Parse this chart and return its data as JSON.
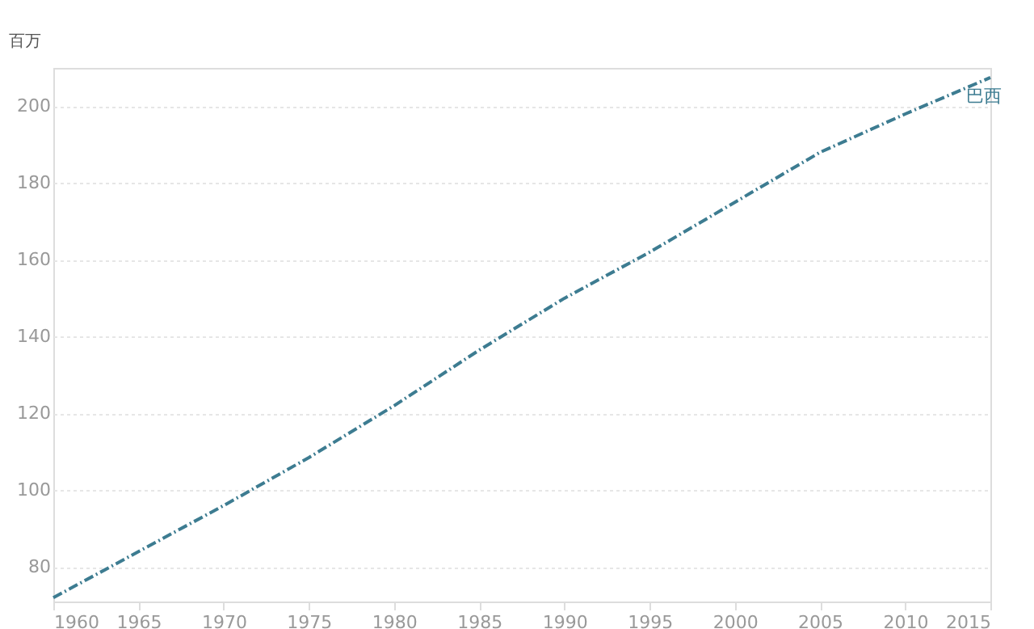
{
  "chart_data": {
    "type": "line",
    "ylabel": "百万",
    "x": [
      1960,
      1965,
      1970,
      1975,
      1980,
      1985,
      1990,
      1995,
      2000,
      2005,
      2010,
      2015
    ],
    "series": [
      {
        "name": "巴西",
        "color": "#3d7c91",
        "values": [
          72,
          84,
          96,
          108.5,
          122,
          136.5,
          150,
          162,
          175,
          188,
          198,
          207.5
        ]
      }
    ],
    "xlim": [
      1960,
      2015
    ],
    "xticks": [
      1960,
      1965,
      1970,
      1975,
      1980,
      1985,
      1990,
      1995,
      2000,
      2005,
      2010,
      2015
    ],
    "ylim": [
      71,
      210
    ],
    "yticks": [
      80,
      100,
      120,
      140,
      160,
      180,
      200
    ],
    "grid": "y",
    "line_style": "dashed",
    "marker": "none",
    "legend": false
  }
}
